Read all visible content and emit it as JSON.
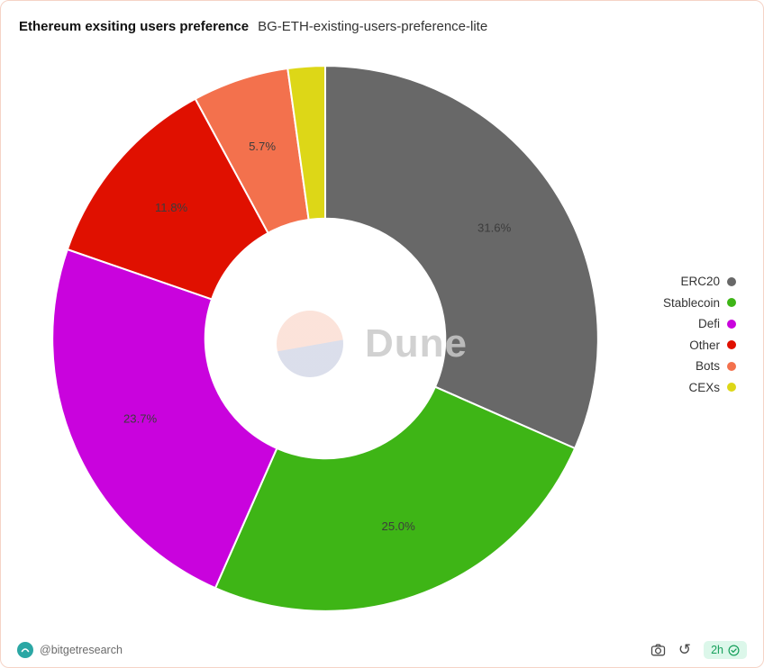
{
  "header": {
    "title": "Ethereum exsiting users preference",
    "subtitle": "BG-ETH-existing-users-preference-lite"
  },
  "chart_data": {
    "type": "pie",
    "subtype": "donut",
    "title": "Ethereum exsiting users preference",
    "start_angle_deg": 0,
    "direction": "clockwise",
    "legend_position": "right",
    "inner_radius_ratio": 0.44,
    "series": [
      {
        "label": "ERC20",
        "value": 31.6,
        "display": "31.6%",
        "color": "#686868",
        "show_label": true
      },
      {
        "label": "Stablecoin",
        "value": 25.0,
        "display": "25.0%",
        "color": "#3eb516",
        "show_label": true
      },
      {
        "label": "Defi",
        "value": 23.7,
        "display": "23.7%",
        "color": "#c903dd",
        "show_label": true
      },
      {
        "label": "Other",
        "value": 11.8,
        "display": "11.8%",
        "color": "#e01000",
        "show_label": true
      },
      {
        "label": "Bots",
        "value": 5.7,
        "display": "5.7%",
        "color": "#f3714d",
        "show_label": true
      },
      {
        "label": "CEXs",
        "value": 2.2,
        "display": "",
        "color": "#ddd717",
        "show_label": false
      }
    ]
  },
  "watermark": {
    "text": "Dune"
  },
  "footer": {
    "handle": "@bitgetresearch",
    "badge_label": "2h",
    "icons": {
      "camera": "screenshot-icon",
      "rotate": "refresh-icon",
      "check": "verified-icon"
    }
  },
  "colors": {
    "card_border": "#f5d3c6",
    "badge_bg": "#dcf7ea",
    "badge_text": "#18a05c",
    "avatar_teal": "#2ba7a4"
  }
}
